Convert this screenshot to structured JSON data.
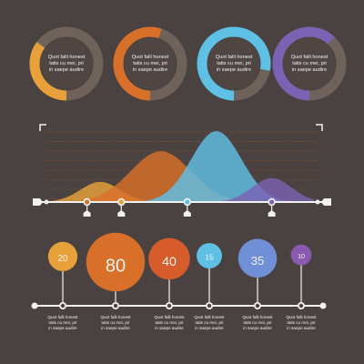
{
  "colors": {
    "background": "#4a4240",
    "track": "#6e625b",
    "inner": "#4f4643",
    "yellow": "#e8a13a",
    "orange": "#d9702a",
    "blue": "#5fc0e5",
    "purple": "#7b62b3",
    "red": "#d65d2b",
    "periwinkle": "#6f8fd6",
    "violet": "#8a5ab0",
    "white": "#f2f2f2",
    "grid": "#a2562f"
  },
  "donuts": [
    {
      "text": [
        "Quot falli honest",
        "tatis cu mei, pri",
        "in saepe audire"
      ],
      "progress": 0.35,
      "color": "yellow"
    },
    {
      "text": [
        "Quot falli honest",
        "tatis cu mei, pri",
        "in saepe audire"
      ],
      "progress": 0.55,
      "color": "orange"
    },
    {
      "text": [
        "Quot falli honest",
        "tatis cu mei, pri",
        "in saepe audire"
      ],
      "progress": 0.78,
      "color": "blue"
    },
    {
      "text": [
        "Quot falli honest",
        "tatis cu mei, pri",
        "in saepe audire"
      ],
      "progress": 0.62,
      "color": "purple"
    }
  ],
  "chart_data": [
    {
      "type": "area",
      "x_range": [
        0,
        10
      ],
      "y_range": [
        0,
        1
      ],
      "grid": true,
      "series": [
        {
          "color": "yellow",
          "peak_x": 1.9,
          "peak_y": 0.27,
          "spread": 0.75
        },
        {
          "color": "orange",
          "peak_x": 4.2,
          "peak_y": 0.68,
          "spread": 1.15
        },
        {
          "color": "blue",
          "peak_x": 6.3,
          "peak_y": 0.95,
          "spread": 0.95
        },
        {
          "color": "purple",
          "peak_x": 8.4,
          "peak_y": 0.32,
          "spread": 0.75
        }
      ],
      "markers": [
        {
          "x": 1.4,
          "color": "orange"
        },
        {
          "x": 2.7,
          "color": "yellow"
        },
        {
          "x": 5.2,
          "color": "blue"
        },
        {
          "x": 8.4,
          "color": "purple"
        }
      ]
    },
    {
      "type": "bubble",
      "bubbles": [
        {
          "value": 20,
          "color": "yellow",
          "text": [
            "Quot falli honest",
            "tatis cu mei, pri",
            "in saepe audire"
          ]
        },
        {
          "value": 80,
          "color": "orange",
          "text": [
            "Quot falli honest",
            "tatis cu mei, pri",
            "in saepe audire"
          ]
        },
        {
          "value": 40,
          "color": "red",
          "text": [
            "Quot falli honest",
            "tatis cu mei, pri",
            "in saepe audire"
          ]
        },
        {
          "value": 15,
          "color": "blue",
          "text": [
            "Quot falli honest",
            "tatis cu mei, pri",
            "in saepe audire"
          ]
        },
        {
          "value": 35,
          "color": "periwinkle",
          "text": [
            "Quot falli honest",
            "tatis cu mei, pri",
            "in saepe audire"
          ]
        },
        {
          "value": 10,
          "color": "violet",
          "text": [
            "Quot falli honest",
            "tatis cu mei, pri",
            "in saepe audire"
          ]
        }
      ]
    }
  ]
}
